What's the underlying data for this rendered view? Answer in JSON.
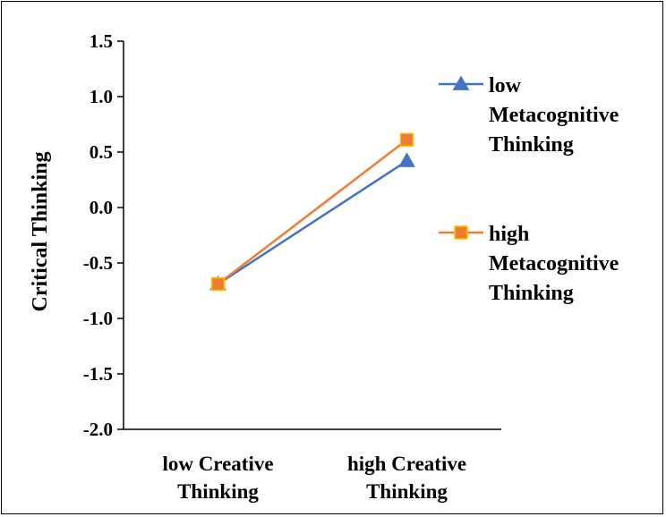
{
  "chart_data": {
    "type": "line",
    "ylabel": "Critical Thinking",
    "xlabel": "",
    "categories": [
      [
        "low Creative",
        "Thinking"
      ],
      [
        "high Creative",
        "Thinking"
      ]
    ],
    "ylim": [
      -2.0,
      1.5
    ],
    "ytick_step": 0.5,
    "ytick_labels": [
      "-2.0",
      "-1.5",
      "-1.0",
      "-0.5",
      "0.0",
      "0.5",
      "1.0",
      "1.5"
    ],
    "grid": false,
    "legend_position": "right",
    "series": [
      {
        "name": [
          "low",
          "Metacognitive",
          "Thinking"
        ],
        "values": [
          -0.69,
          0.42
        ],
        "color": "#4472C4",
        "marker": "triangle"
      },
      {
        "name": [
          "high",
          "Metacognitive",
          "Thinking"
        ],
        "values": [
          -0.69,
          0.61
        ],
        "color": "#ED7D31",
        "marker": "square"
      }
    ]
  }
}
